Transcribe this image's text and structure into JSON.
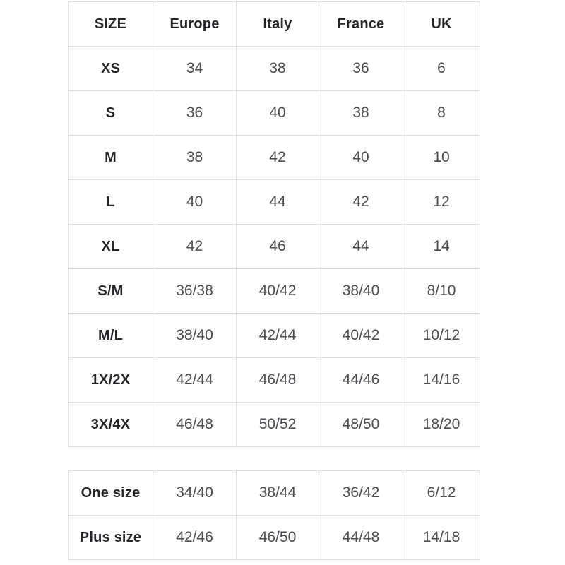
{
  "chart_data": [
    {
      "type": "table",
      "columns": [
        "SIZE",
        "Europe",
        "Italy",
        "France",
        "UK"
      ],
      "rows": [
        [
          "XS",
          "34",
          "38",
          "36",
          "6"
        ],
        [
          "S",
          "36",
          "40",
          "38",
          "8"
        ],
        [
          "M",
          "38",
          "42",
          "40",
          "10"
        ],
        [
          "L",
          "40",
          "44",
          "42",
          "12"
        ],
        [
          "XL",
          "42",
          "46",
          "44",
          "14"
        ],
        [
          "S/M",
          "36/38",
          "40/42",
          "38/40",
          "8/10"
        ],
        [
          "M/L",
          "38/40",
          "42/44",
          "40/42",
          "10/12"
        ],
        [
          "1X/2X",
          "42/44",
          "46/48",
          "44/46",
          "14/16"
        ],
        [
          "3X/4X",
          "46/48",
          "50/52",
          "48/50",
          "18/20"
        ]
      ],
      "layout": {
        "header_row": true,
        "grid": true,
        "text_align": "center"
      }
    },
    {
      "type": "table",
      "columns": [],
      "rows": [
        [
          "One size",
          "34/40",
          "38/44",
          "36/42",
          "6/12"
        ],
        [
          "Plus size",
          "42/46",
          "46/50",
          "44/48",
          "14/18"
        ]
      ],
      "layout": {
        "header_row": false,
        "grid": true,
        "text_align": "center"
      }
    }
  ],
  "colors": {
    "background": "#ffffff",
    "border": "#e0e0e0",
    "label_text": "#25252d",
    "value_text": "#4b4b53"
  }
}
